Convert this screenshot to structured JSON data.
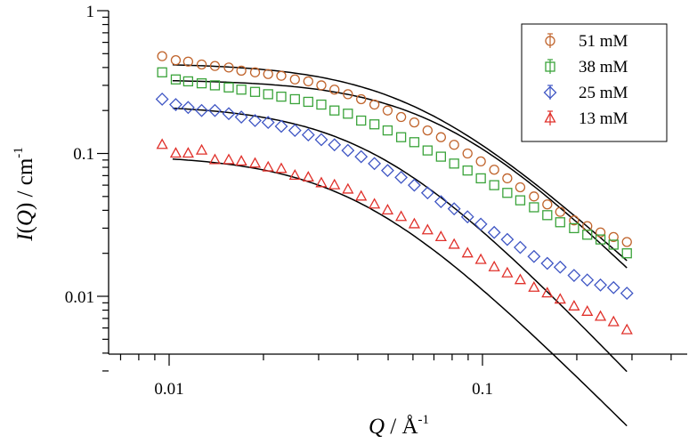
{
  "chart_data": {
    "type": "scatter",
    "x_scale": "log",
    "y_scale": "log",
    "xlim": [
      0.007,
      0.4
    ],
    "ylim": [
      0.003,
      1
    ],
    "x_ticks": [
      {
        "value": 0.01,
        "label": "0.01"
      },
      {
        "value": 0.1,
        "label": "0.1"
      }
    ],
    "y_ticks": [
      {
        "value": 0.01,
        "label": "0.01"
      },
      {
        "value": 0.1,
        "label": "0.1"
      },
      {
        "value": 1,
        "label": "1"
      }
    ],
    "xlabel": {
      "italic": "Q",
      "rest": " / Å",
      "sup": "-1"
    },
    "ylabel": {
      "italic": "I",
      "open": "(",
      "italic2": "Q",
      "rest": ") / cm",
      "sup": "-1"
    },
    "legend_position": "top-right",
    "fit_color": "#000000",
    "series": [
      {
        "name": "51 mM",
        "marker": "circle",
        "color": "#c0642c",
        "model": {
          "I0": 0.43,
          "Q0": 0.06,
          "p": 1.0
        },
        "x": [
          0.0095,
          0.0105,
          0.0115,
          0.0127,
          0.014,
          0.0155,
          0.017,
          0.0188,
          0.0207,
          0.0228,
          0.0252,
          0.0278,
          0.0306,
          0.0337,
          0.0372,
          0.041,
          0.0452,
          0.0498,
          0.055,
          0.0606,
          0.0668,
          0.0737,
          0.0812,
          0.0896,
          0.0988,
          0.109,
          0.12,
          0.132,
          0.146,
          0.161,
          0.177,
          0.196,
          0.216,
          0.238,
          0.262,
          0.289
        ],
        "y": [
          0.48,
          0.45,
          0.44,
          0.42,
          0.41,
          0.4,
          0.38,
          0.37,
          0.36,
          0.35,
          0.33,
          0.32,
          0.3,
          0.28,
          0.26,
          0.24,
          0.22,
          0.2,
          0.18,
          0.165,
          0.145,
          0.13,
          0.115,
          0.1,
          0.088,
          0.077,
          0.067,
          0.058,
          0.05,
          0.044,
          0.039,
          0.034,
          0.031,
          0.028,
          0.026,
          0.024
        ]
      },
      {
        "name": "38 mM",
        "marker": "square",
        "color": "#3aa33a",
        "model": {
          "I0": 0.33,
          "Q0": 0.075,
          "p": 1.1
        },
        "x": [
          0.0095,
          0.0105,
          0.0115,
          0.0127,
          0.014,
          0.0155,
          0.017,
          0.0188,
          0.0207,
          0.0228,
          0.0252,
          0.0278,
          0.0306,
          0.0337,
          0.0372,
          0.041,
          0.0452,
          0.0498,
          0.055,
          0.0606,
          0.0668,
          0.0737,
          0.0812,
          0.0896,
          0.0988,
          0.109,
          0.12,
          0.132,
          0.146,
          0.161,
          0.177,
          0.196,
          0.216,
          0.238,
          0.262,
          0.289
        ],
        "y": [
          0.37,
          0.33,
          0.32,
          0.31,
          0.3,
          0.29,
          0.28,
          0.27,
          0.26,
          0.25,
          0.24,
          0.23,
          0.22,
          0.2,
          0.19,
          0.17,
          0.16,
          0.145,
          0.13,
          0.12,
          0.105,
          0.095,
          0.085,
          0.076,
          0.067,
          0.06,
          0.053,
          0.047,
          0.042,
          0.037,
          0.033,
          0.03,
          0.027,
          0.025,
          0.023,
          0.02
        ]
      },
      {
        "name": "25 mM",
        "marker": "diamond",
        "color": "#3f56c4",
        "model": {
          "I0": 0.22,
          "Q0": 0.045,
          "p": 1.15
        },
        "x": [
          0.0095,
          0.0105,
          0.0115,
          0.0127,
          0.014,
          0.0155,
          0.017,
          0.0188,
          0.0207,
          0.0228,
          0.0252,
          0.0278,
          0.0306,
          0.0337,
          0.0372,
          0.041,
          0.0452,
          0.0498,
          0.055,
          0.0606,
          0.0668,
          0.0737,
          0.0812,
          0.0896,
          0.0988,
          0.109,
          0.12,
          0.132,
          0.146,
          0.161,
          0.177,
          0.196,
          0.216,
          0.238,
          0.262,
          0.289
        ],
        "y": [
          0.24,
          0.22,
          0.21,
          0.2,
          0.2,
          0.19,
          0.18,
          0.17,
          0.165,
          0.155,
          0.145,
          0.135,
          0.125,
          0.115,
          0.105,
          0.095,
          0.085,
          0.076,
          0.068,
          0.06,
          0.053,
          0.046,
          0.041,
          0.036,
          0.032,
          0.028,
          0.025,
          0.022,
          0.019,
          0.017,
          0.016,
          0.014,
          0.013,
          0.012,
          0.0115,
          0.0105
        ]
      },
      {
        "name": "13 mM",
        "marker": "triangle",
        "color": "#e0302a",
        "model": {
          "I0": 0.098,
          "Q0": 0.04,
          "p": 1.1
        },
        "x": [
          0.0095,
          0.0105,
          0.0115,
          0.0127,
          0.014,
          0.0155,
          0.017,
          0.0188,
          0.0207,
          0.0228,
          0.0252,
          0.0278,
          0.0306,
          0.0337,
          0.0372,
          0.041,
          0.0452,
          0.0498,
          0.055,
          0.0606,
          0.0668,
          0.0737,
          0.0812,
          0.0896,
          0.0988,
          0.109,
          0.12,
          0.132,
          0.146,
          0.161,
          0.177,
          0.196,
          0.216,
          0.238,
          0.262,
          0.289
        ],
        "y": [
          0.115,
          0.1,
          0.1,
          0.105,
          0.09,
          0.09,
          0.088,
          0.085,
          0.08,
          0.078,
          0.07,
          0.068,
          0.062,
          0.06,
          0.056,
          0.05,
          0.044,
          0.04,
          0.036,
          0.032,
          0.029,
          0.026,
          0.023,
          0.02,
          0.018,
          0.016,
          0.0145,
          0.013,
          0.0115,
          0.0105,
          0.0095,
          0.0085,
          0.0078,
          0.0072,
          0.0066,
          0.0058
        ]
      }
    ]
  }
}
